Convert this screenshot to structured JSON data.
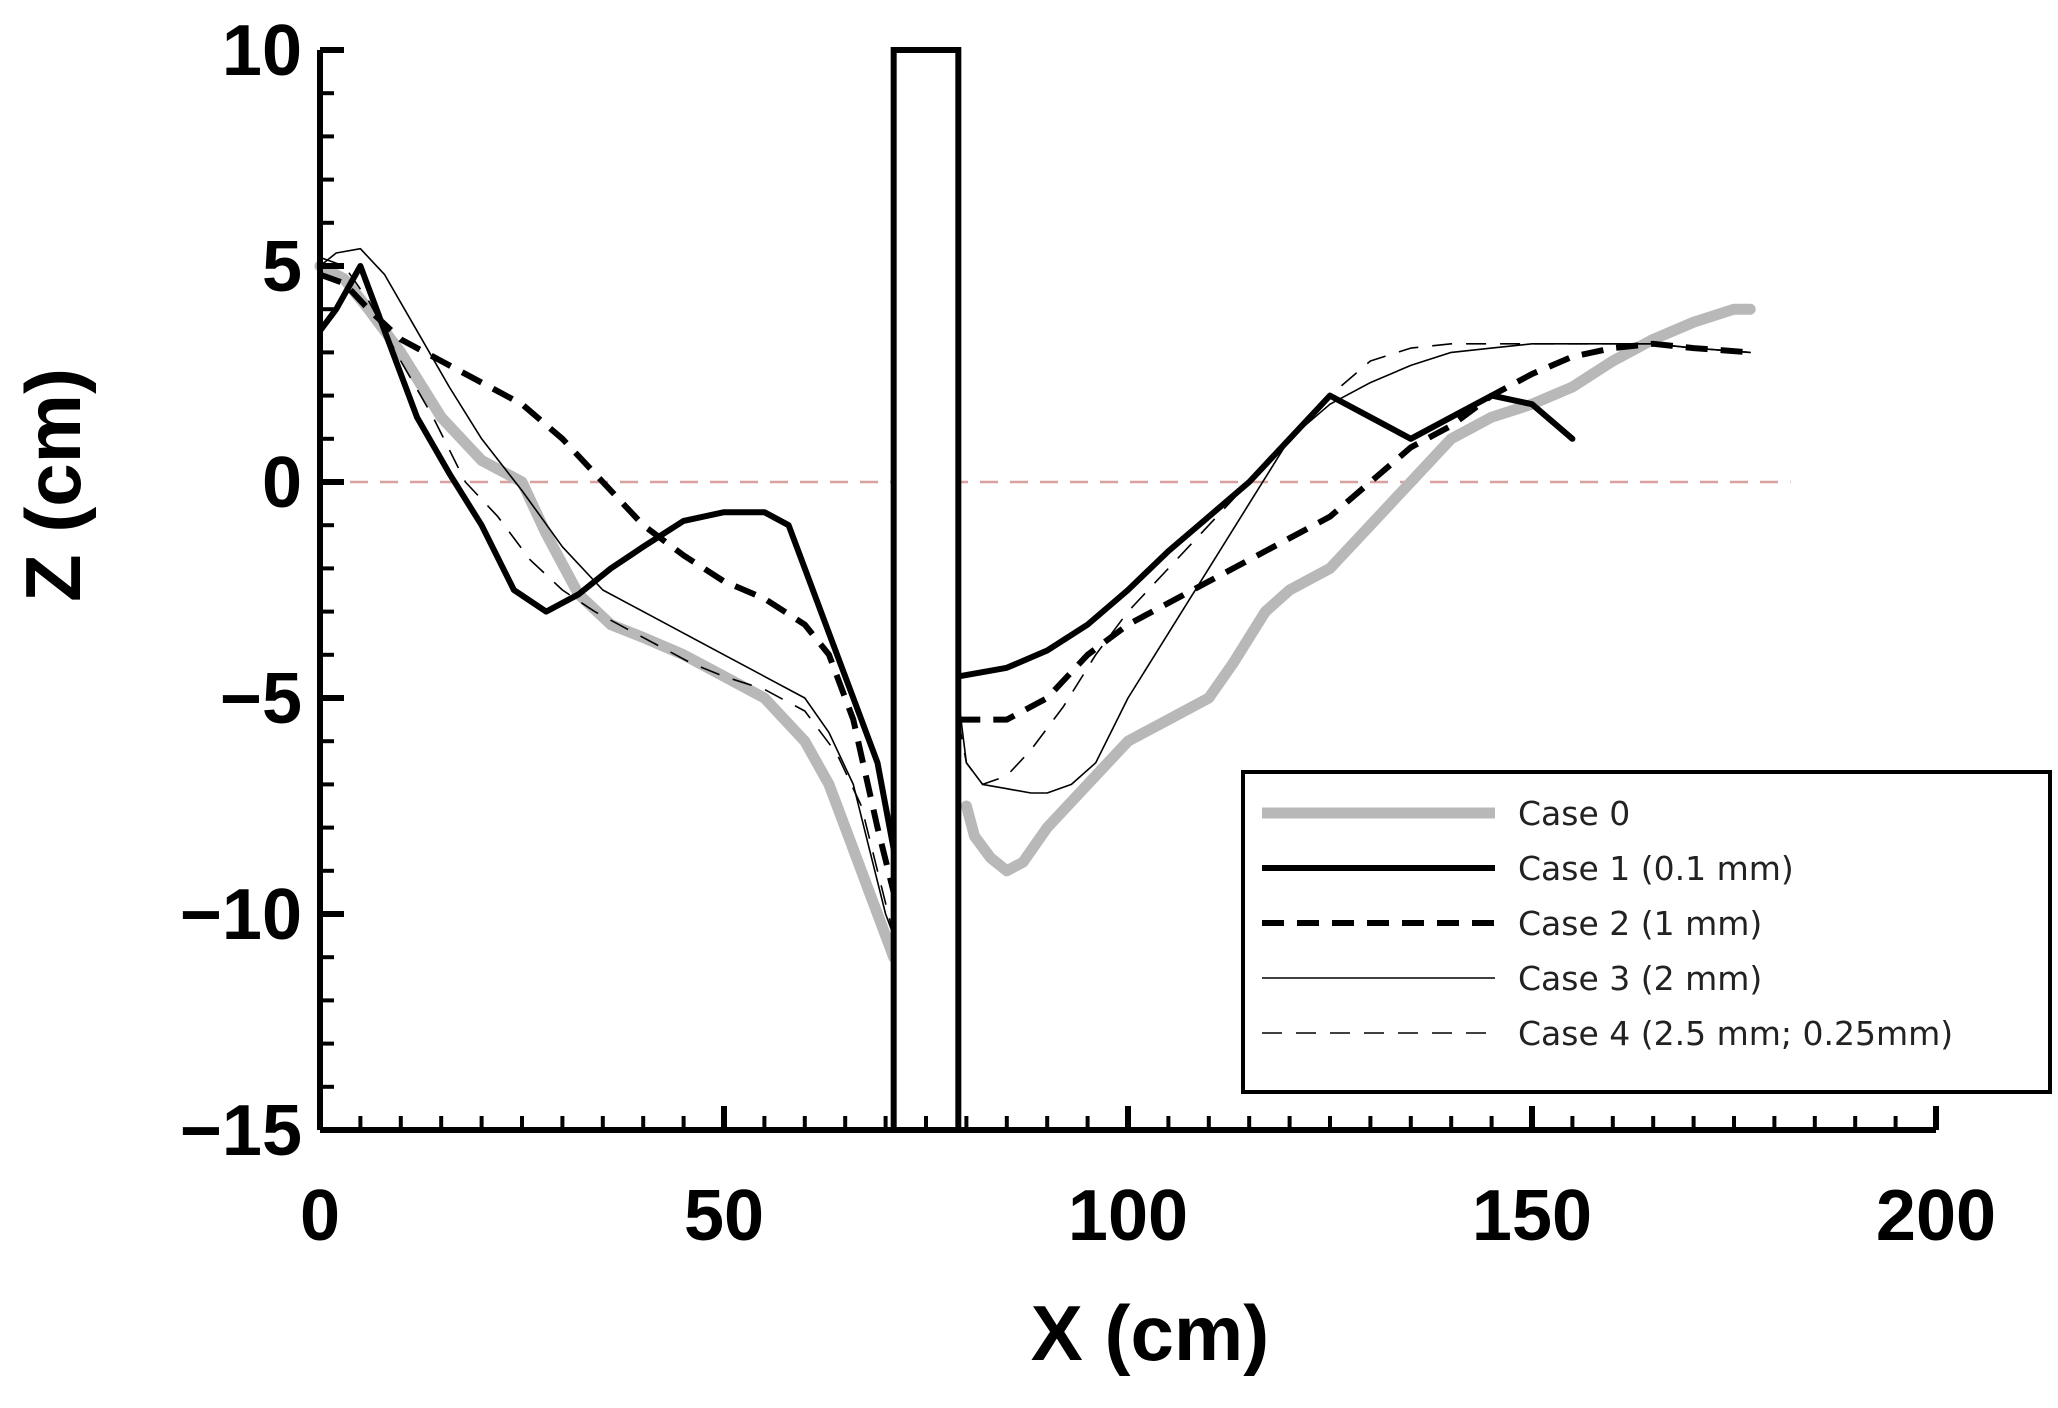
{
  "chart_data": {
    "type": "line",
    "title": "",
    "xlabel": "X (cm)",
    "ylabel": "Z (cm)",
    "xlim": [
      0,
      200
    ],
    "ylim": [
      -15,
      10
    ],
    "x_ticks": [
      0,
      50,
      100,
      150,
      200
    ],
    "y_ticks": [
      10,
      5,
      0,
      -5,
      -10,
      -15
    ],
    "x_tick_labels": [
      "0",
      "50",
      "100",
      "150",
      "200"
    ],
    "y_tick_labels": [
      "10",
      "5",
      "0",
      "−5",
      "−10",
      "−15"
    ],
    "x_minor_step": 5,
    "y_minor_step": 1,
    "reference_line": {
      "y": 0,
      "color": "#d9a0a0",
      "style": "dashed"
    },
    "structure": {
      "name": "pier",
      "x": [
        71,
        79
      ],
      "z_top": 10
    },
    "legend_position": "bottom-right",
    "series": [
      {
        "name": "Case 0",
        "color": "#b8b8b8",
        "style": "thick",
        "segments": [
          {
            "x": [
              0,
              3,
              6,
              10,
              15,
              20,
              25,
              28,
              32,
              36,
              40,
              45,
              50,
              55,
              60,
              63,
              66,
              68,
              70,
              71
            ],
            "z": [
              5,
              4.7,
              4,
              3,
              1.5,
              0.5,
              0,
              -1.2,
              -2.6,
              -3.3,
              -3.6,
              -4,
              -4.5,
              -5,
              -6,
              -7,
              -8.5,
              -9.5,
              -10.5,
              -11
            ]
          },
          {
            "x": [
              80,
              81,
              83,
              85,
              87,
              90,
              95,
              100,
              105,
              110,
              113,
              117,
              120,
              125,
              130,
              135,
              140,
              145,
              150,
              155,
              160,
              165,
              170,
              175,
              177
            ],
            "z": [
              -7.5,
              -8.2,
              -8.7,
              -9,
              -8.8,
              -8,
              -7,
              -6,
              -5.5,
              -5,
              -4.2,
              -3,
              -2.5,
              -2,
              -1,
              0,
              1,
              1.5,
              1.8,
              2.2,
              2.8,
              3.3,
              3.7,
              4,
              4
            ]
          }
        ]
      },
      {
        "name": "Case 1 (0.1 mm)",
        "color": "#000000",
        "style": "solid-bold",
        "segments": [
          {
            "x": [
              0,
              2,
              5,
              8,
              12,
              16,
              20,
              24,
              28,
              32,
              36,
              40,
              45,
              50,
              55,
              58,
              60,
              63,
              66,
              69,
              71
            ],
            "z": [
              3.5,
              4,
              5,
              3.5,
              1.5,
              0.2,
              -1,
              -2.5,
              -3,
              -2.6,
              -2,
              -1.5,
              -0.9,
              -0.7,
              -0.7,
              -1,
              -2,
              -3.5,
              -5,
              -6.5,
              -8.5
            ]
          },
          {
            "x": [
              79,
              85,
              90,
              95,
              100,
              105,
              110,
              115,
              120,
              125,
              130,
              135,
              140,
              145,
              150,
              155
            ],
            "z": [
              -4.5,
              -4.3,
              -3.9,
              -3.3,
              -2.5,
              -1.6,
              -0.8,
              0,
              1,
              2,
              1.5,
              1,
              1.5,
              2,
              1.8,
              1
            ]
          }
        ]
      },
      {
        "name": "Case 2 (1 mm)",
        "color": "#000000",
        "style": "dashed-bold",
        "segments": [
          {
            "x": [
              0,
              3,
              6,
              10,
              15,
              20,
              25,
              30,
              35,
              40,
              45,
              50,
              55,
              60,
              63,
              66,
              69,
              71
            ],
            "z": [
              4.8,
              4.6,
              4,
              3.3,
              2.8,
              2.3,
              1.8,
              1,
              0,
              -1,
              -1.7,
              -2.3,
              -2.7,
              -3.3,
              -4,
              -5.5,
              -8,
              -9.5
            ]
          },
          {
            "x": [
              79,
              85,
              90,
              95,
              100,
              105,
              110,
              115,
              120,
              125,
              130,
              135,
              140,
              145,
              150,
              155,
              160,
              165,
              170,
              177
            ],
            "z": [
              -5.5,
              -5.5,
              -5,
              -4,
              -3.3,
              -2.8,
              -2.3,
              -1.8,
              -1.3,
              -0.8,
              0,
              0.8,
              1.3,
              2,
              2.5,
              2.9,
              3.1,
              3.2,
              3.1,
              3
            ]
          }
        ]
      },
      {
        "name": "Case 3 (2 mm)",
        "color": "#000000",
        "style": "solid-thin",
        "segments": [
          {
            "x": [
              0,
              2,
              5,
              8,
              12,
              16,
              20,
              25,
              30,
              35,
              40,
              45,
              50,
              55,
              60,
              63,
              66,
              68,
              70,
              71
            ],
            "z": [
              5,
              5.3,
              5.4,
              4.8,
              3.5,
              2.2,
              1,
              -0.2,
              -1.5,
              -2.5,
              -3,
              -3.5,
              -4,
              -4.5,
              -5,
              -5.8,
              -7,
              -8.5,
              -10,
              -10.5
            ]
          },
          {
            "x": [
              79,
              80,
              82,
              85,
              88,
              90,
              93,
              96,
              100,
              105,
              110,
              115,
              120,
              125,
              130,
              135,
              140,
              145,
              150,
              155,
              160,
              165,
              170,
              177
            ],
            "z": [
              -5,
              -6.5,
              -7,
              -7.1,
              -7.2,
              -7.2,
              -7,
              -6.5,
              -5,
              -3.5,
              -2,
              -0.5,
              1,
              1.8,
              2.3,
              2.7,
              3,
              3.1,
              3.2,
              3.2,
              3.2,
              3.2,
              3.1,
              3
            ]
          }
        ]
      },
      {
        "name": "Case 4  (2.5 mm; 0.25mm)",
        "color": "#000000",
        "style": "dashed-thin",
        "segments": [
          {
            "x": [
              0,
              3,
              6,
              10,
              14,
              18,
              22,
              26,
              30,
              34,
              38,
              42,
              46,
              50,
              55,
              60,
              64,
              67,
              69,
              71
            ],
            "z": [
              5.2,
              5,
              4.2,
              2.8,
              1.5,
              0,
              -0.8,
              -1.8,
              -2.5,
              -3,
              -3.4,
              -3.8,
              -4.2,
              -4.5,
              -4.8,
              -5.3,
              -6.3,
              -7.5,
              -9,
              -10.5
            ]
          },
          {
            "x": [
              79,
              80,
              82,
              85,
              88,
              92,
              96,
              100,
              105,
              110,
              115,
              120,
              125,
              130,
              135,
              140,
              145,
              150,
              155,
              160,
              165,
              170,
              177
            ],
            "z": [
              -5.5,
              -6.5,
              -7,
              -6.8,
              -6.2,
              -5.2,
              -4,
              -3,
              -2,
              -1,
              0,
              1,
              2,
              2.8,
              3.1,
              3.2,
              3.2,
              3.2,
              3.2,
              3.2,
              3.2,
              3.1,
              3
            ]
          }
        ]
      }
    ]
  }
}
